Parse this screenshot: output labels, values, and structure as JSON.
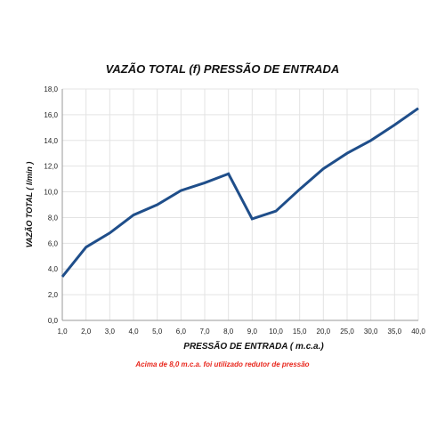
{
  "chart_data": {
    "type": "line",
    "title": "VAZÃO TOTAL (f) PRESSÃO DE ENTRADA",
    "xlabel": "PRESSÃO DE ENTRADA ( m.c.a.)",
    "ylabel": "VAZÃO TOTAL ( l/min )",
    "categories": [
      "1,0",
      "2,0",
      "3,0",
      "4,0",
      "5,0",
      "6,0",
      "7,0",
      "8,0",
      "9,0",
      "10,0",
      "15,0",
      "20,0",
      "25,0",
      "30,0",
      "35,0",
      "40,0"
    ],
    "values": [
      3.4,
      5.7,
      6.8,
      8.2,
      9.0,
      10.1,
      10.7,
      11.4,
      7.9,
      8.5,
      10.2,
      11.8,
      13.0,
      14.0,
      15.2,
      16.5
    ],
    "ylim": [
      0,
      18
    ],
    "yticks": [
      "0,0",
      "2,0",
      "4,0",
      "6,0",
      "8,0",
      "10,0",
      "12,0",
      "14,0",
      "16,0",
      "18,0"
    ],
    "grid": true,
    "line_color": "#1f4e8a",
    "note": "Acima de 8,0 m.c.a. foi utilizado redutor de pressão",
    "note_color": "#e8261c"
  }
}
